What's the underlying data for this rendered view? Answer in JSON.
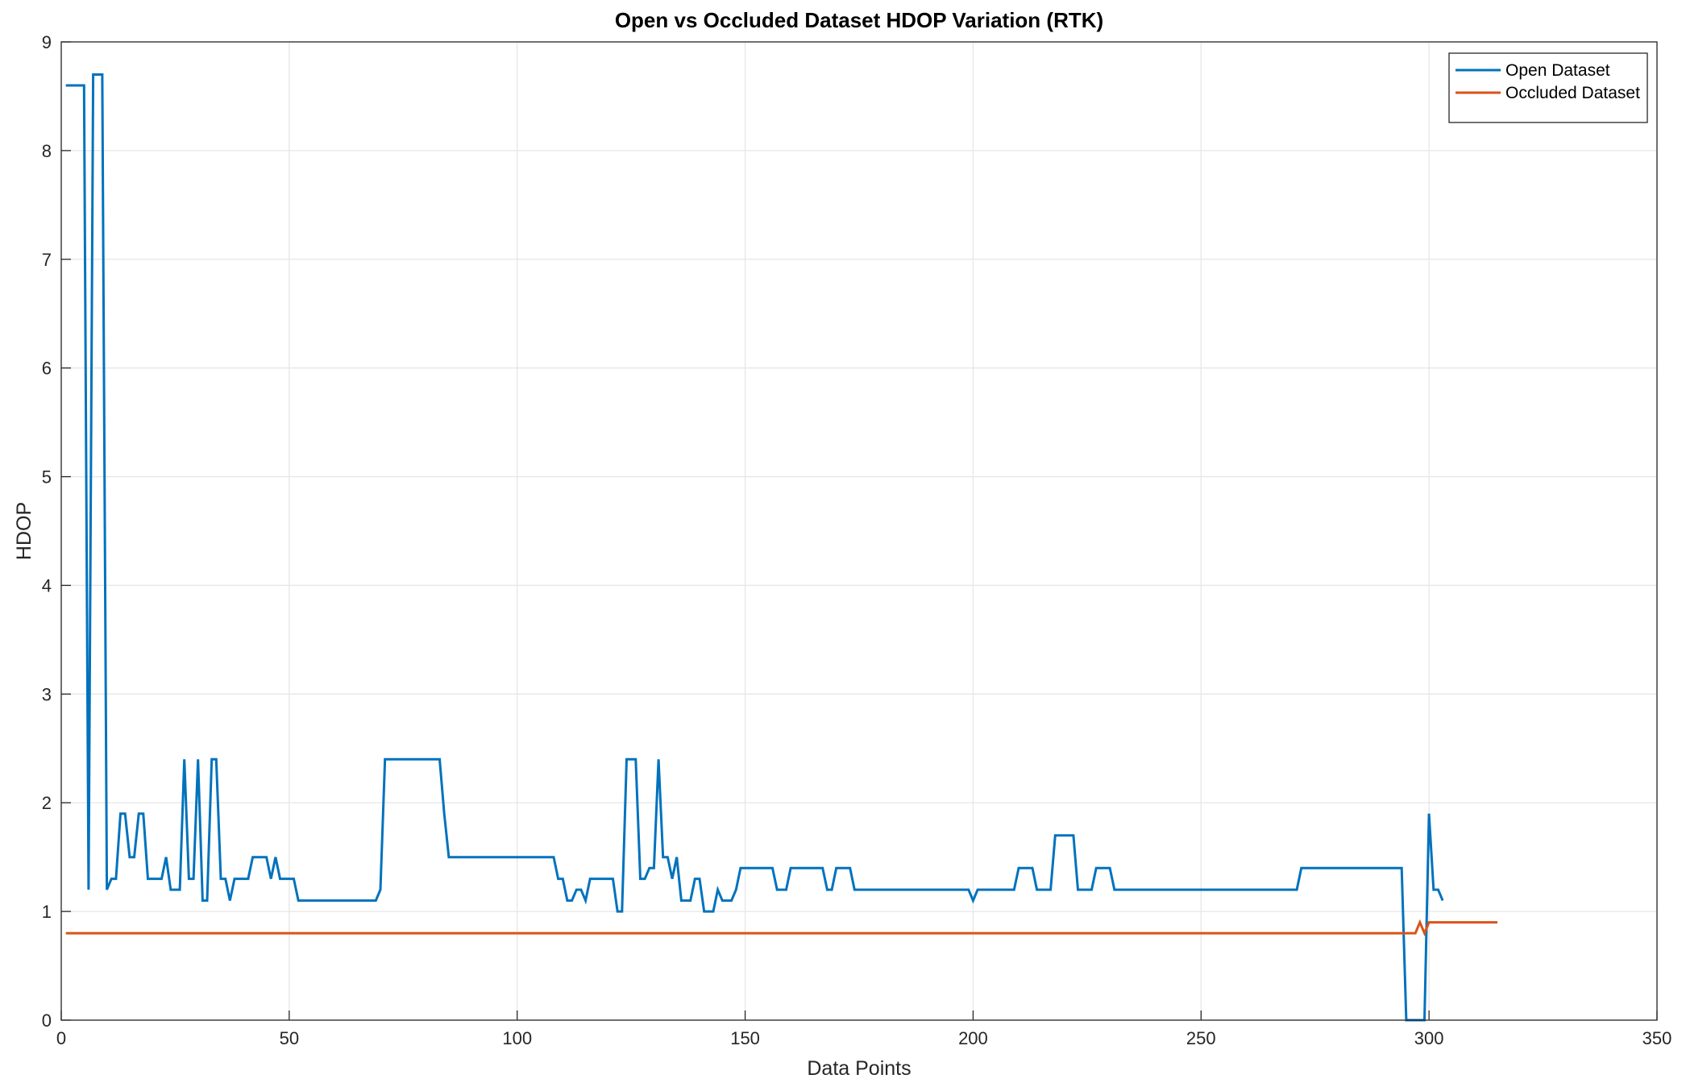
{
  "chart_data": {
    "type": "line",
    "title": "Open vs Occluded Dataset HDOP Variation (RTK)",
    "x_label": "Data Points",
    "y_label": "HDOP",
    "xlim": [
      0,
      350
    ],
    "xticks": [
      0,
      50,
      100,
      150,
      200,
      250,
      300,
      350
    ],
    "ylim": [
      0,
      9
    ],
    "yticks": [
      0,
      1,
      2,
      3,
      4,
      5,
      6,
      7,
      8,
      9
    ],
    "grid": true,
    "legend": "top-right",
    "series": [
      {
        "name": "Open Dataset",
        "color": "#0072bd",
        "x": [
          1,
          5,
          6,
          7,
          9,
          10,
          11,
          12,
          13,
          14,
          15,
          16,
          17,
          18,
          19,
          22,
          23,
          24,
          26,
          27,
          28,
          29,
          30,
          31,
          32,
          33,
          34,
          35,
          36,
          37,
          38,
          41,
          42,
          45,
          46,
          47,
          48,
          51,
          52,
          69,
          70,
          71,
          83,
          84,
          85,
          108,
          109,
          110,
          111,
          112,
          113,
          114,
          115,
          116,
          121,
          122,
          123,
          124,
          126,
          127,
          128,
          129,
          130,
          131,
          132,
          133,
          134,
          135,
          136,
          138,
          139,
          140,
          141,
          143,
          144,
          145,
          147,
          148,
          149,
          156,
          157,
          159,
          160,
          167,
          168,
          169,
          170,
          173,
          174,
          199,
          200,
          201,
          209,
          210,
          213,
          214,
          217,
          218,
          222,
          223,
          226,
          227,
          230,
          231,
          271,
          272,
          294,
          295,
          299,
          300,
          301,
          302,
          303
        ],
        "values": [
          8.6,
          8.6,
          1.2,
          8.7,
          8.7,
          1.2,
          1.3,
          1.3,
          1.9,
          1.9,
          1.5,
          1.5,
          1.9,
          1.9,
          1.3,
          1.3,
          1.5,
          1.2,
          1.2,
          2.4,
          1.3,
          1.3,
          2.4,
          1.1,
          1.1,
          2.4,
          2.4,
          1.3,
          1.3,
          1.1,
          1.3,
          1.3,
          1.5,
          1.5,
          1.3,
          1.5,
          1.3,
          1.3,
          1.1,
          1.1,
          1.2,
          2.4,
          2.4,
          1.9,
          1.5,
          1.5,
          1.3,
          1.3,
          1.1,
          1.1,
          1.2,
          1.2,
          1.1,
          1.3,
          1.3,
          1.0,
          1.0,
          2.4,
          2.4,
          1.3,
          1.3,
          1.4,
          1.4,
          2.4,
          1.5,
          1.5,
          1.3,
          1.5,
          1.1,
          1.1,
          1.3,
          1.3,
          1.0,
          1.0,
          1.2,
          1.1,
          1.1,
          1.2,
          1.4,
          1.4,
          1.2,
          1.2,
          1.4,
          1.4,
          1.2,
          1.2,
          1.4,
          1.4,
          1.2,
          1.2,
          1.1,
          1.2,
          1.2,
          1.4,
          1.4,
          1.2,
          1.2,
          1.7,
          1.7,
          1.2,
          1.2,
          1.4,
          1.4,
          1.2,
          1.2,
          1.4,
          1.4,
          0,
          0,
          1.9,
          1.2,
          1.2,
          1.1
        ]
      },
      {
        "name": "Occluded Dataset",
        "color": "#d95319",
        "x": [
          1,
          297,
          298,
          299,
          300,
          315
        ],
        "values": [
          0.8,
          0.8,
          0.9,
          0.8,
          0.9,
          0.9
        ]
      }
    ]
  }
}
